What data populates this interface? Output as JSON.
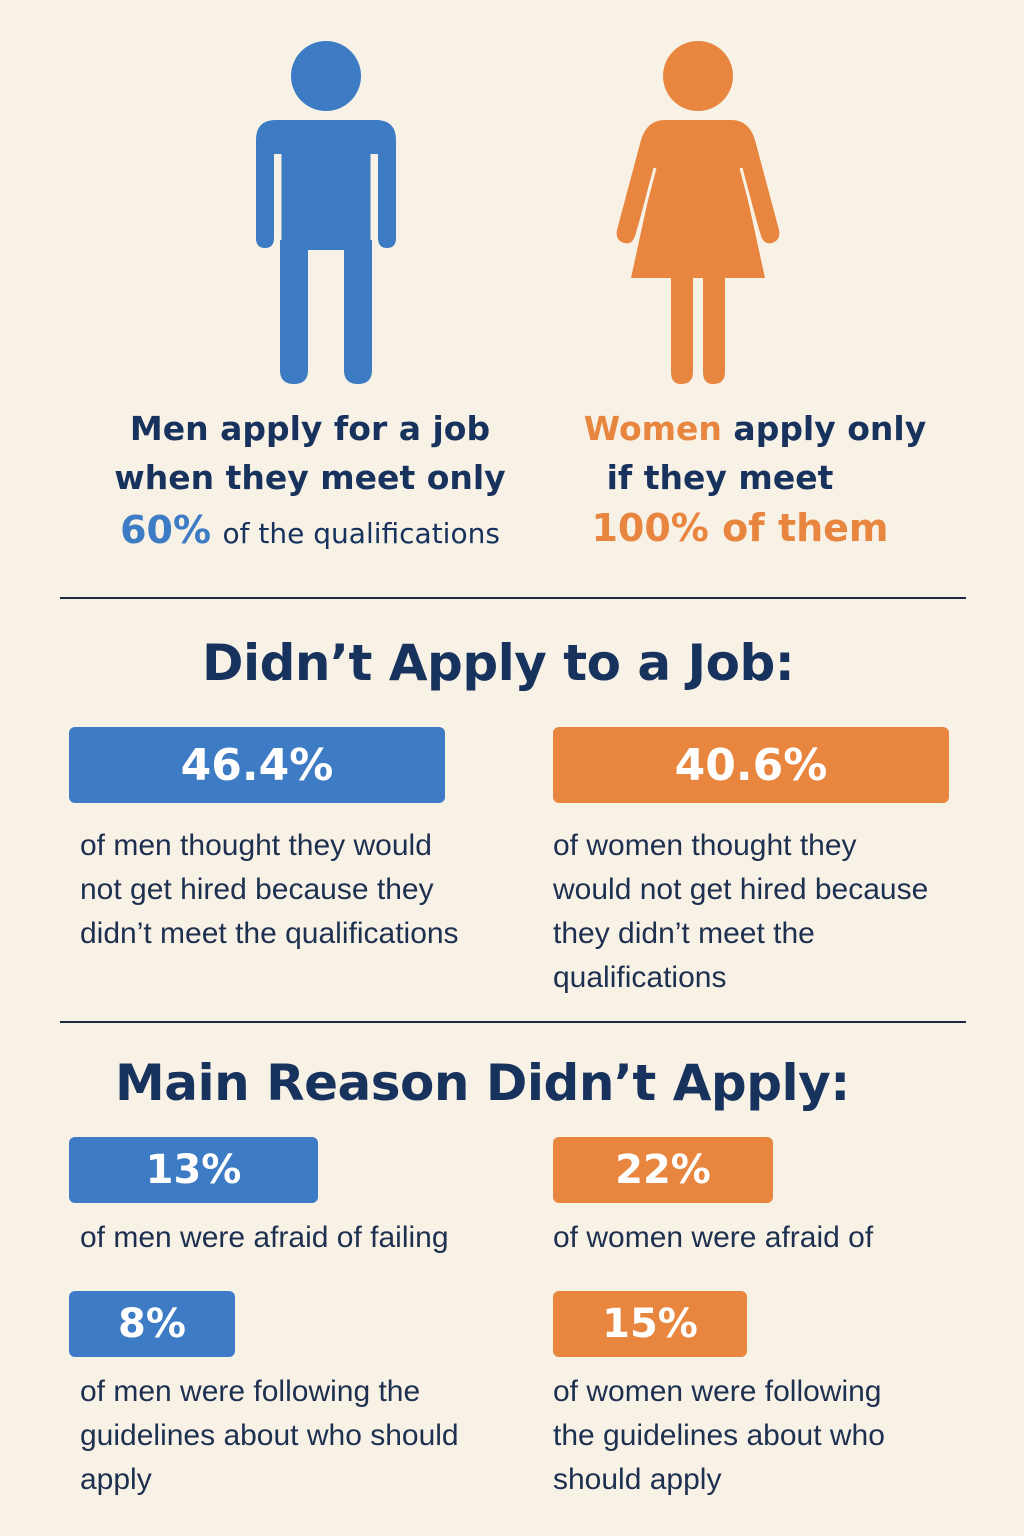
{
  "colors": {
    "background": "#f8f1e6",
    "navy": "#17325c",
    "blue": "#3d7bc4",
    "orange": "#e8863f"
  },
  "icons": {
    "men": "man-figure-icon",
    "women": "woman-figure-icon"
  },
  "intro": {
    "men": {
      "line1": "Men apply for a job",
      "line2": "when they meet only",
      "highlight": "60%",
      "rest": "of the qualifications"
    },
    "women": {
      "highlight": "Women",
      "line1_rest": "apply only",
      "line2": "if they meet",
      "line3": "100% of them"
    }
  },
  "section1": {
    "title": "Didn’t Apply to a Job:",
    "men": {
      "value": "46.4%",
      "text": [
        "of men thought they would",
        "not get hired because they",
        "didn’t meet the qualifications"
      ]
    },
    "women": {
      "value": "40.6%",
      "text": [
        "of women thought they",
        "would not get hired because",
        "they didn’t meet the",
        "qualifications"
      ]
    }
  },
  "section2": {
    "title": "Main Reason Didn’t Apply:",
    "men_fail": {
      "value": "13%",
      "text": "of men were afraid of failing"
    },
    "women_fail": {
      "value": "22%",
      "text": "of women were afraid of"
    },
    "men_guide": {
      "value": "8%",
      "text": [
        "of men were following the",
        "guidelines about who should",
        "apply"
      ]
    },
    "women_guide": {
      "value": "15%",
      "text": [
        "of women were following",
        "the guidelines about who",
        "should apply"
      ]
    }
  }
}
